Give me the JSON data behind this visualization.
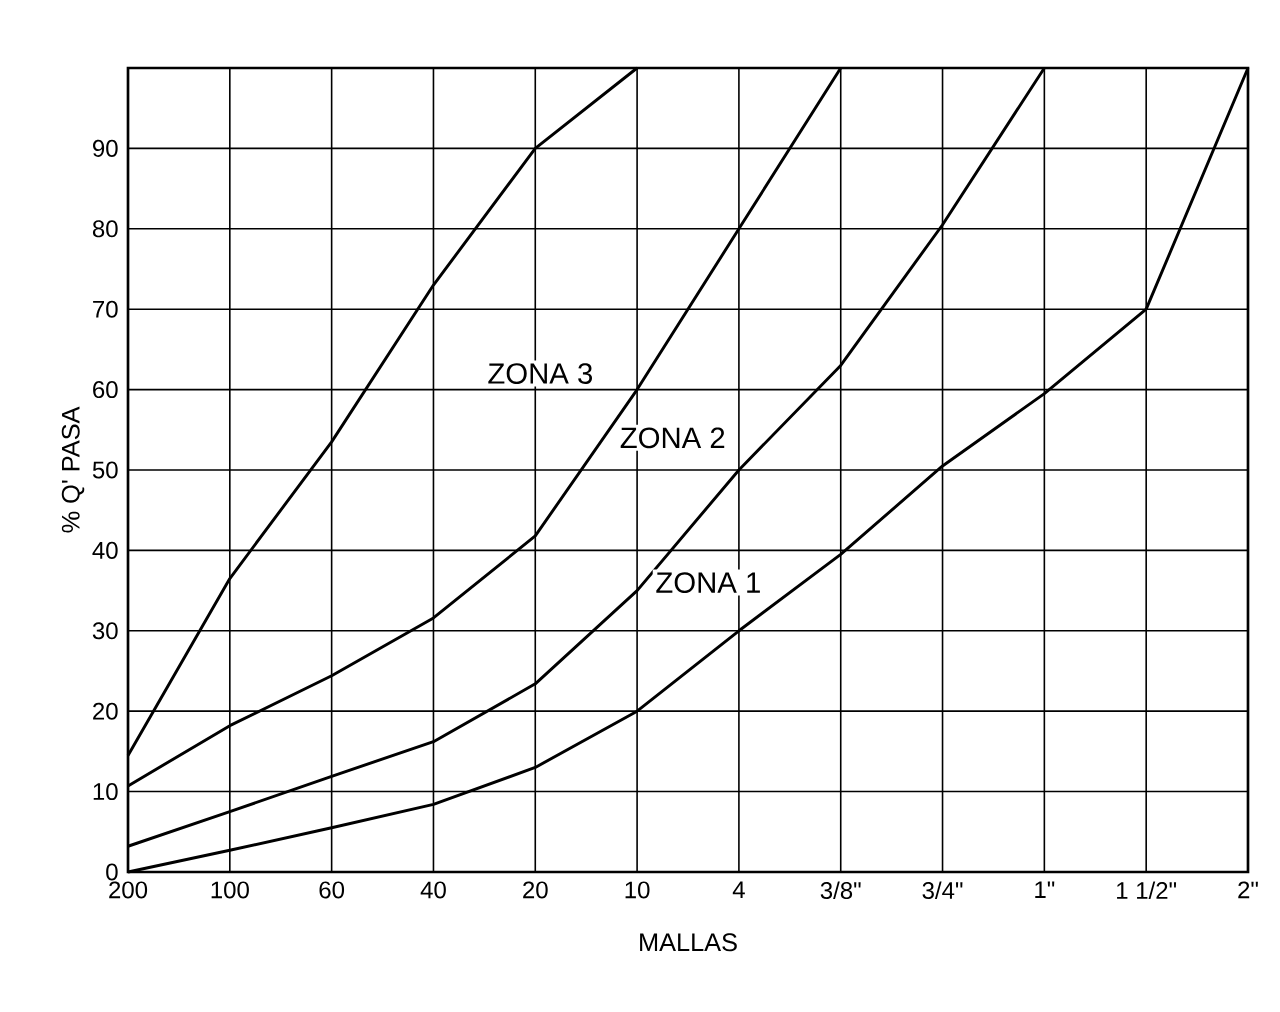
{
  "chart_data": {
    "type": "line",
    "xlabel": "MALLAS",
    "ylabel": "% Q' PASA",
    "grid": true,
    "marker": "none",
    "line_style": "solid",
    "categories": [
      "200",
      "100",
      "60",
      "40",
      "20",
      "10",
      "4",
      "3/8\"",
      "3/4\"",
      "1\"",
      "1 1/2\"",
      "2\""
    ],
    "ylim": [
      0,
      100
    ],
    "yticks": [
      0,
      10,
      20,
      30,
      40,
      50,
      60,
      70,
      80,
      90
    ],
    "series": [
      {
        "color": "#000000",
        "values": [
          14.5,
          36.5,
          53.5,
          73,
          90,
          100,
          null,
          null,
          null,
          null,
          null,
          null
        ]
      },
      {
        "color": "#000000",
        "values": [
          10.7,
          18.2,
          24.4,
          31.6,
          41.8,
          60,
          80,
          100,
          null,
          null,
          null,
          null
        ]
      },
      {
        "color": "#000000",
        "values": [
          3.2,
          7.5,
          11.9,
          16.2,
          23.4,
          35,
          50,
          63,
          80.5,
          100,
          null,
          null
        ]
      },
      {
        "color": "#000000",
        "values": [
          0,
          2.7,
          5.5,
          8.4,
          13,
          20,
          30,
          39.5,
          50.5,
          59.5,
          70,
          100
        ]
      }
    ],
    "annotations": [
      "ZONA 3",
      "ZONA 2",
      "ZONA 1"
    ]
  }
}
